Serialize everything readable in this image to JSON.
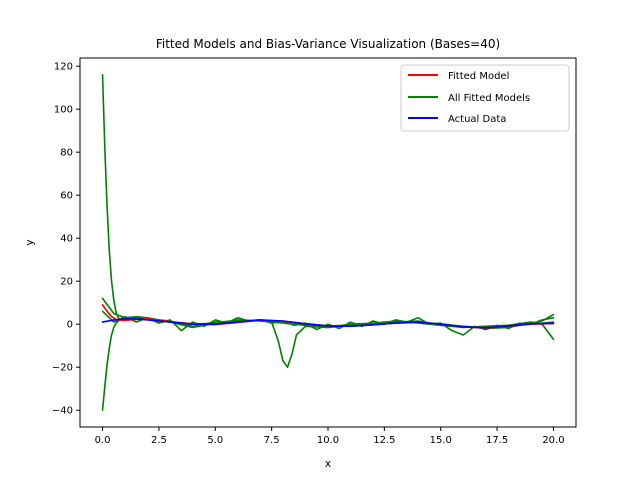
{
  "chart_data": {
    "type": "line",
    "title": "Fitted Models and Bias-Variance Visualization (Bases=40)",
    "xlabel": "x",
    "ylabel": "y",
    "xlim": [
      -1.0,
      21.0
    ],
    "ylim": [
      -47.8,
      123.8
    ],
    "xticks": [
      0.0,
      2.5,
      5.0,
      7.5,
      10.0,
      12.5,
      15.0,
      17.5,
      20.0
    ],
    "xtick_labels": [
      "0.0",
      "2.5",
      "5.0",
      "7.5",
      "10.0",
      "12.5",
      "15.0",
      "17.5",
      "20.0"
    ],
    "yticks": [
      -40,
      -20,
      0,
      20,
      40,
      60,
      80,
      100,
      120
    ],
    "ytick_labels": [
      "−40",
      "−20",
      "0",
      "20",
      "40",
      "60",
      "80",
      "100",
      "120"
    ],
    "grid": false,
    "legend_position": "top-right",
    "colors": {
      "fitted": "#ff0000",
      "all_fitted": "#008000",
      "actual": "#0000ff"
    },
    "series": [
      {
        "name": "Fitted Model",
        "role": "fitted",
        "x": [
          0,
          0.2,
          0.4,
          0.6,
          0.8,
          1.0,
          1.5,
          2.0,
          3.0,
          4.0,
          5.0,
          6.0,
          7.0,
          8.0,
          9.0,
          10.0,
          11.0,
          12.0,
          13.0,
          14.0,
          15.0,
          16.0,
          17.0,
          18.0,
          19.0,
          20.0
        ],
        "y": [
          9,
          6,
          3.5,
          2.2,
          1.8,
          1.8,
          2.2,
          2.5,
          1.2,
          0.2,
          -0.2,
          0.8,
          1.8,
          1.4,
          0.2,
          -0.8,
          -0.9,
          -0.3,
          0.5,
          0.9,
          0.0,
          -1.3,
          -1.8,
          -1.0,
          0.0,
          0.3
        ]
      },
      {
        "name": "All Fitted Models",
        "role": "all_fitted",
        "x": [
          0,
          0.1,
          0.2,
          0.3,
          0.4,
          0.5,
          0.6,
          0.7,
          0.8,
          1.0,
          1.5,
          2.0,
          3.0,
          4.0,
          5.0,
          6.0,
          7.0,
          8.0,
          9.0,
          10.0,
          11.0,
          12.0,
          13.0,
          14.0,
          15.0,
          16.0,
          17.0,
          18.0,
          19.0,
          19.5,
          20.0
        ],
        "y": [
          116,
          82,
          55,
          34,
          20,
          11,
          5.5,
          3,
          2,
          2.2,
          2.8,
          2.4,
          1.0,
          0.0,
          0.5,
          1.2,
          2.0,
          1.3,
          0.3,
          -0.8,
          -0.5,
          0.0,
          0.8,
          1.0,
          0.2,
          -1.0,
          -1.6,
          -0.6,
          0.3,
          0.5,
          1.0
        ]
      },
      {
        "name": "All Fitted Models",
        "role": "all_fitted",
        "x": [
          0,
          0.1,
          0.2,
          0.3,
          0.4,
          0.5,
          0.6,
          0.7,
          0.8,
          1.0,
          1.5,
          2.0,
          3.0,
          4.0,
          5.0,
          6.0,
          7.0,
          8.0,
          9.0,
          10.0,
          11.0,
          12.0,
          13.0,
          14.0,
          15.0,
          16.0,
          17.0,
          18.0,
          19.0,
          19.5,
          20.0
        ],
        "y": [
          -40,
          -29,
          -19,
          -11,
          -5,
          -1.5,
          0.5,
          1.5,
          2,
          2.5,
          3.5,
          3.0,
          1.0,
          -1.5,
          0.5,
          2.0,
          1.5,
          0.5,
          -0.5,
          -1.5,
          0.0,
          0.5,
          1.5,
          0.5,
          -0.5,
          -1.0,
          -2.0,
          -1.5,
          0.5,
          1.5,
          4.5
        ]
      },
      {
        "name": "All Fitted Models",
        "role": "all_fitted",
        "x": [
          0,
          0.5,
          1.0,
          1.5,
          2.0,
          3.0,
          4.0,
          5.0,
          6.0,
          7.0,
          7.5,
          7.8,
          8.0,
          8.2,
          8.4,
          8.6,
          9.0,
          10.0,
          11.0,
          12.0,
          13.0,
          14.0,
          15.0,
          16.0,
          17.0,
          18.0,
          19.0,
          19.5,
          20.0
        ],
        "y": [
          12,
          5,
          3.0,
          3.5,
          2.5,
          1.5,
          -1.0,
          1.0,
          1.5,
          2.0,
          1.0,
          -8,
          -17,
          -20,
          -14,
          -5,
          -1.0,
          -1.5,
          -0.5,
          0.5,
          1.0,
          1.5,
          -0.5,
          -1.5,
          -1.0,
          -0.5,
          1.0,
          0.0,
          -7.0
        ]
      },
      {
        "name": "All Fitted Models",
        "role": "all_fitted",
        "x": [
          0,
          0.5,
          1.0,
          1.5,
          2.0,
          2.5,
          3.0,
          3.5,
          4.0,
          4.5,
          5.0,
          5.5,
          6.0,
          6.5,
          7.0,
          7.5,
          8.0,
          8.5,
          9.0,
          9.5,
          10.0,
          10.5,
          11.0,
          11.5,
          12.0,
          12.5,
          13.0,
          13.5,
          14.0,
          14.5,
          15.0,
          15.5,
          16.0,
          16.5,
          17.0,
          17.5,
          18.0,
          18.5,
          19.0,
          19.5,
          20.0
        ],
        "y": [
          6,
          1.0,
          3.5,
          1.0,
          3.0,
          0.5,
          2.0,
          -3.0,
          1.0,
          -1.0,
          2.0,
          0.5,
          3.0,
          1.5,
          2.0,
          0.5,
          1.5,
          -0.5,
          0.5,
          -2.5,
          0.0,
          -2.0,
          1.0,
          -1.0,
          1.5,
          0.0,
          2.0,
          1.0,
          3.0,
          0.0,
          0.5,
          -3.0,
          -5.0,
          -1.0,
          -2.5,
          -0.5,
          -2.0,
          0.5,
          0.0,
          2.0,
          3.0
        ]
      },
      {
        "name": "Actual Data",
        "role": "actual",
        "x": [
          0,
          0.5,
          1.0,
          1.5,
          2.0,
          3.0,
          4.0,
          5.0,
          6.0,
          7.0,
          8.0,
          9.0,
          10.0,
          11.0,
          12.0,
          13.0,
          14.0,
          15.0,
          16.0,
          17.0,
          18.0,
          19.0,
          20.0
        ],
        "y": [
          1.0,
          2.0,
          2.5,
          2.5,
          2.0,
          1.0,
          0.0,
          0.0,
          1.0,
          2.0,
          1.5,
          0.2,
          -0.8,
          -1.0,
          -0.3,
          0.6,
          1.0,
          0.0,
          -1.2,
          -1.6,
          -0.8,
          0.2,
          0.5
        ]
      }
    ],
    "legend": [
      {
        "label": "Fitted Model",
        "role": "fitted"
      },
      {
        "label": "All Fitted Models",
        "role": "all_fitted"
      },
      {
        "label": "Actual Data",
        "role": "actual"
      }
    ]
  }
}
